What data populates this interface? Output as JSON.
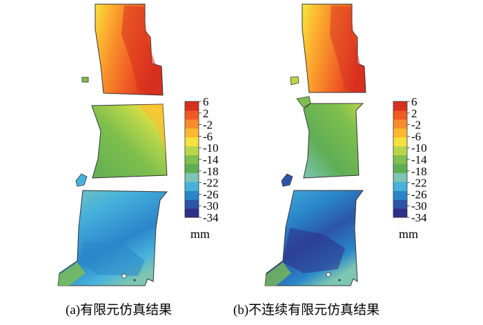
{
  "figure": {
    "panels": [
      {
        "id": "a",
        "caption": "(a)有限元仿真结果",
        "colorbar": {
          "ticks": [
            "6",
            "2",
            "-2",
            "-6",
            "-10",
            "-14",
            "-18",
            "-22",
            "-26",
            "-30",
            "-34"
          ],
          "unit": "mm"
        }
      },
      {
        "id": "b",
        "caption": "(b)不连续有限元仿真结果",
        "colorbar": {
          "ticks": [
            "6",
            "2",
            "-2",
            "-6",
            "-10",
            "-14",
            "-18",
            "-22",
            "-26",
            "-30",
            "-34"
          ],
          "unit": "mm"
        }
      }
    ],
    "colormap": [
      "#d7301f",
      "#ef5a24",
      "#f88c2a",
      "#fdb832",
      "#f3e23c",
      "#b9d64a",
      "#7fbf4d",
      "#5fae55",
      "#7cc6b3",
      "#47b1dc",
      "#2a86c9",
      "#2c55a8",
      "#2e2f86"
    ]
  }
}
